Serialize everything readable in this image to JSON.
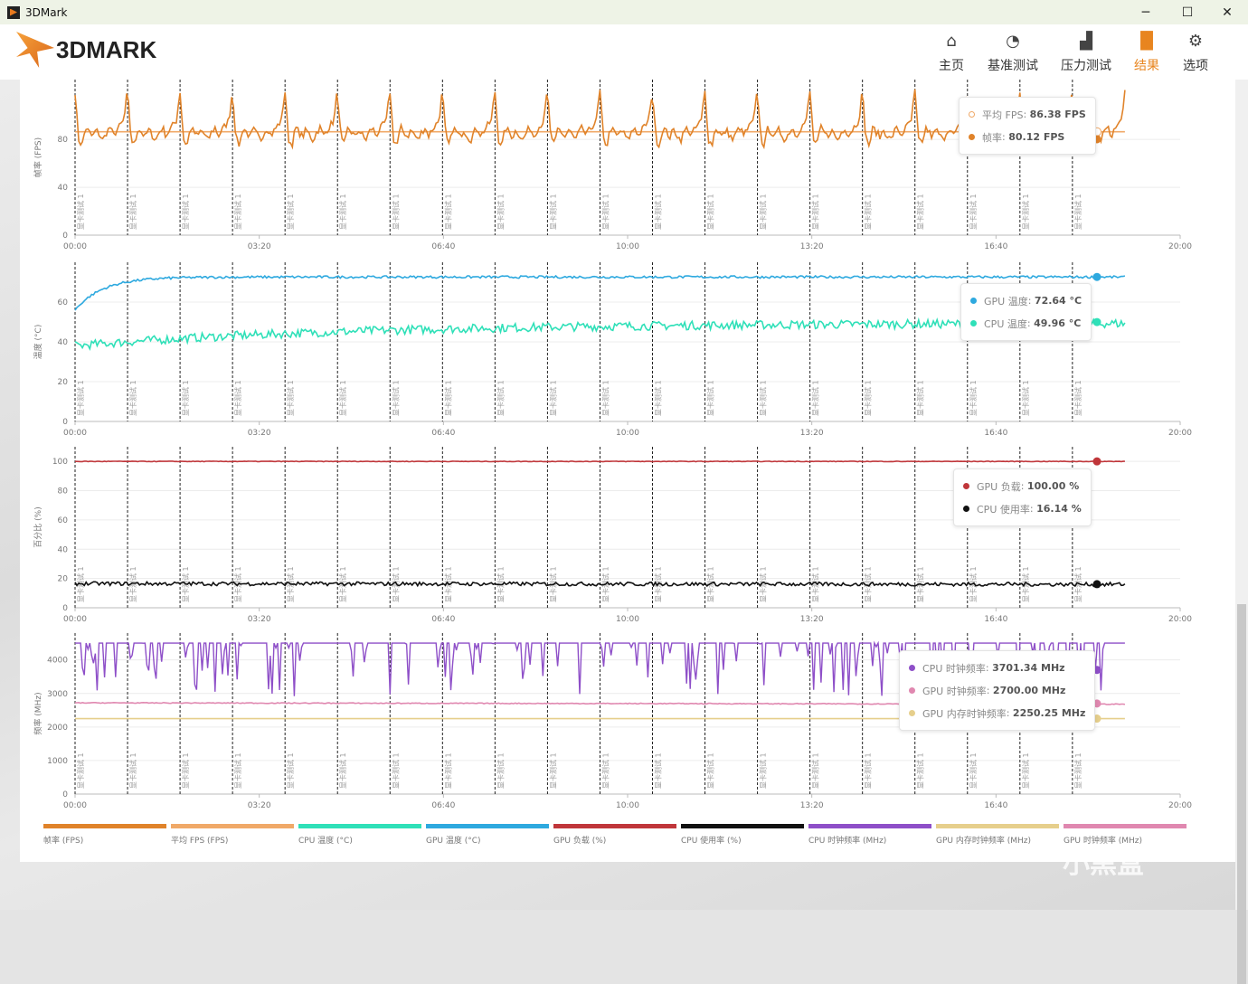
{
  "window": {
    "title": "3DMark",
    "minimize": "─",
    "maximize": "☐",
    "close": "✕"
  },
  "logo": "3DMARK",
  "nav": [
    {
      "label": "主页",
      "icon": "home-icon",
      "glyph": "⌂"
    },
    {
      "label": "基准测试",
      "icon": "gauge-icon",
      "glyph": "◔"
    },
    {
      "label": "压力测试",
      "icon": "bar-chart-icon",
      "glyph": "▟"
    },
    {
      "label": "结果",
      "icon": "results-icon",
      "glyph": "▐▌",
      "active": true
    },
    {
      "label": "选项",
      "icon": "gear-icon",
      "glyph": "⚙"
    }
  ],
  "colors": {
    "fps": "#e0832a",
    "avg_fps": "#f0a968",
    "cpu_temp": "#2fe0b8",
    "gpu_temp": "#2ea9df",
    "gpu_load": "#c0363a",
    "cpu_usage": "#111111",
    "cpu_clock": "#8e4fc8",
    "gpu_mem_clock": "#e6cf8c",
    "gpu_clock": "#e088b0"
  },
  "marker_label": "显卡测试 1",
  "chart_data": [
    {
      "type": "line",
      "ylabel": "帧率 (FPS)",
      "ylim": [
        0,
        130
      ],
      "yticks": [
        0,
        40,
        80
      ],
      "xlim": [
        0,
        1200
      ],
      "xticks": [
        "00:00",
        "03:20",
        "06:40",
        "10:00",
        "13:20",
        "16:40",
        "20:00"
      ],
      "markers_every_s": 57,
      "markers_count": 20,
      "end_s": 1140,
      "series": [
        {
          "name": "帧率 (FPS)",
          "key": "fps",
          "cycle": [
            120,
            80,
            75,
            90,
            86,
            82,
            88,
            84,
            79,
            86,
            90,
            83,
            88,
            92,
            96,
            123
          ],
          "noise": 3
        },
        {
          "name": "平均 FPS (FPS)",
          "key": "avg_fps",
          "constant": 86.38
        }
      ],
      "tooltip": [
        {
          "key": "avg_fps",
          "label": "平均 FPS",
          "value": "86.38 FPS",
          "hollow": true
        },
        {
          "key": "fps",
          "label": "帧率",
          "value": "80.12 FPS"
        }
      ]
    },
    {
      "type": "line",
      "ylabel": "温度 (°C)",
      "ylim": [
        0,
        80
      ],
      "yticks": [
        0,
        20,
        40,
        60
      ],
      "xlim": [
        0,
        1200
      ],
      "xticks": [
        "00:00",
        "03:20",
        "06:40",
        "10:00",
        "13:20",
        "16:40",
        "20:00"
      ],
      "series": [
        {
          "name": "GPU 温度 (°C)",
          "key": "gpu_temp",
          "start": 56,
          "end": 72.6,
          "rise_s": 90,
          "noise": 0.6
        },
        {
          "name": "CPU 温度 (°C)",
          "key": "cpu_temp",
          "start": 38,
          "end": 49.5,
          "rise_s": 900,
          "noise": 2.2
        }
      ],
      "tooltip": [
        {
          "key": "gpu_temp",
          "label": "GPU 温度",
          "value": "72.64 °C"
        },
        {
          "key": "cpu_temp",
          "label": "CPU 温度",
          "value": "49.96 °C"
        }
      ]
    },
    {
      "type": "line",
      "ylabel": "百分比 (%)",
      "ylim": [
        0,
        110
      ],
      "yticks": [
        0,
        20,
        40,
        60,
        80,
        100
      ],
      "xlim": [
        0,
        1200
      ],
      "xticks": [
        "00:00",
        "03:20",
        "06:40",
        "10:00",
        "13:20",
        "16:40",
        "20:00"
      ],
      "series": [
        {
          "name": "GPU 负载 (%)",
          "key": "gpu_load",
          "start": 100,
          "end": 100,
          "noise": 0.2
        },
        {
          "name": "CPU 使用率 (%)",
          "key": "cpu_usage",
          "start": 16.5,
          "end": 16,
          "noise": 1.3
        }
      ],
      "tooltip": [
        {
          "key": "gpu_load",
          "label": "GPU 负载",
          "value": "100.00 %"
        },
        {
          "key": "cpu_usage",
          "label": "CPU 使用率",
          "value": "16.14 %"
        }
      ]
    },
    {
      "type": "line",
      "ylabel": "频率 (MHz)",
      "ylim": [
        0,
        4800
      ],
      "yticks": [
        0,
        1000,
        2000,
        3000,
        4000
      ],
      "xlim": [
        0,
        1200
      ],
      "xticks": [
        "00:00",
        "03:20",
        "06:40",
        "10:00",
        "13:20",
        "16:40",
        "20:00"
      ],
      "series": [
        {
          "name": "CPU 时钟频率 (MHz)",
          "key": "cpu_clock",
          "base": 4500,
          "drop_min": 2900,
          "drop_prob": 0.22
        },
        {
          "name": "GPU 时钟频率 (MHz)",
          "key": "gpu_clock",
          "start": 2720,
          "end": 2680,
          "noise": 12
        },
        {
          "name": "GPU 内存时钟频率 (MHz)",
          "key": "gpu_mem_clock",
          "start": 2250.25,
          "end": 2250.25,
          "noise": 0
        }
      ],
      "tooltip": [
        {
          "key": "cpu_clock",
          "label": "CPU 时钟频率",
          "value": "3701.34 MHz"
        },
        {
          "key": "gpu_clock",
          "label": "GPU 时钟频率",
          "value": "2700.00 MHz"
        },
        {
          "key": "gpu_mem_clock",
          "label": "GPU 内存时钟频率",
          "value": "2250.25 MHz"
        }
      ]
    }
  ],
  "legend": [
    {
      "key": "fps",
      "label": "帧率 (FPS)"
    },
    {
      "key": "avg_fps",
      "label": "平均 FPS (FPS)"
    },
    {
      "key": "cpu_temp",
      "label": "CPU 温度 (°C)"
    },
    {
      "key": "gpu_temp",
      "label": "GPU 温度 (°C)"
    },
    {
      "key": "gpu_load",
      "label": "GPU 负载 (%)"
    },
    {
      "key": "cpu_usage",
      "label": "CPU 使用率 (%)"
    },
    {
      "key": "cpu_clock",
      "label": "CPU 时钟频率 (MHz)"
    },
    {
      "key": "gpu_mem_clock",
      "label": "GPU 内存时钟频率 (MHz)"
    },
    {
      "key": "gpu_clock",
      "label": "GPU 时钟频率 (MHz)"
    }
  ],
  "watermark": "小黑盒"
}
